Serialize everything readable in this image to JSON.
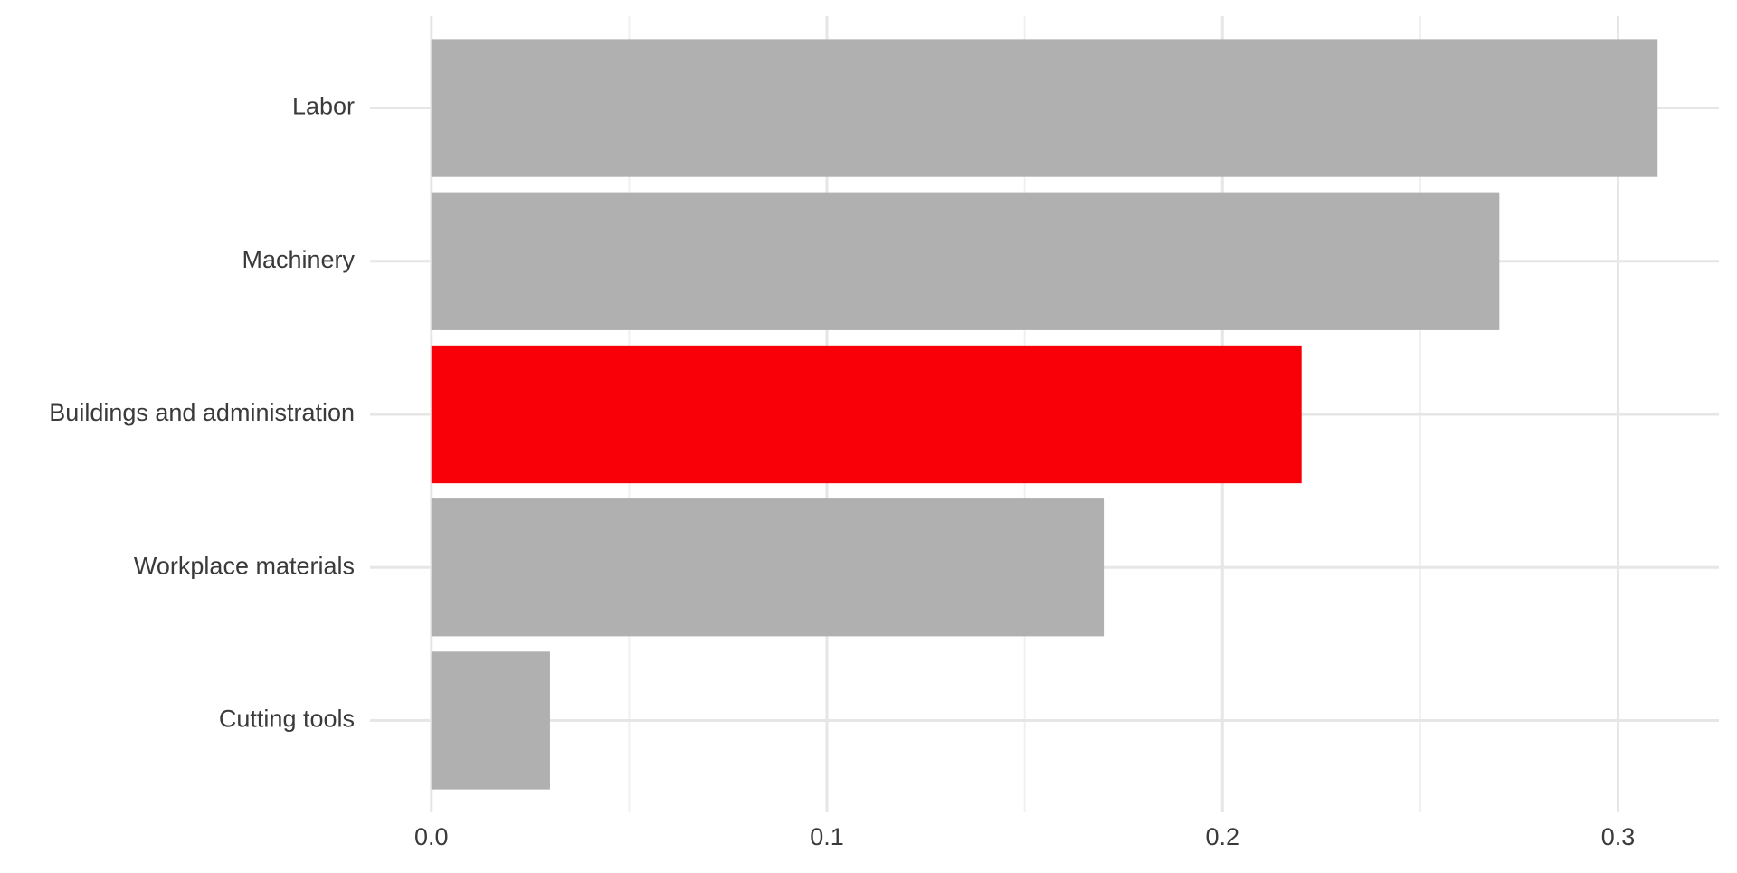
{
  "chart_data": {
    "type": "barh",
    "categories": [
      "Labor",
      "Machinery",
      "Buildings and administration",
      "Workplace materials",
      "Cutting tools"
    ],
    "values": [
      0.31,
      0.27,
      0.22,
      0.17,
      0.03
    ],
    "colors": [
      "#b0b0b0",
      "#b0b0b0",
      "#f90008",
      "#b0b0b0",
      "#b0b0b0"
    ],
    "xlim": [
      -0.0155,
      0.3255
    ],
    "xticks": [
      {
        "value": 0,
        "label": "0.0"
      },
      0.1,
      0.2,
      0.3
    ],
    "minor_xticks": [
      0.05,
      0.15,
      0.25
    ],
    "grid": true
  }
}
